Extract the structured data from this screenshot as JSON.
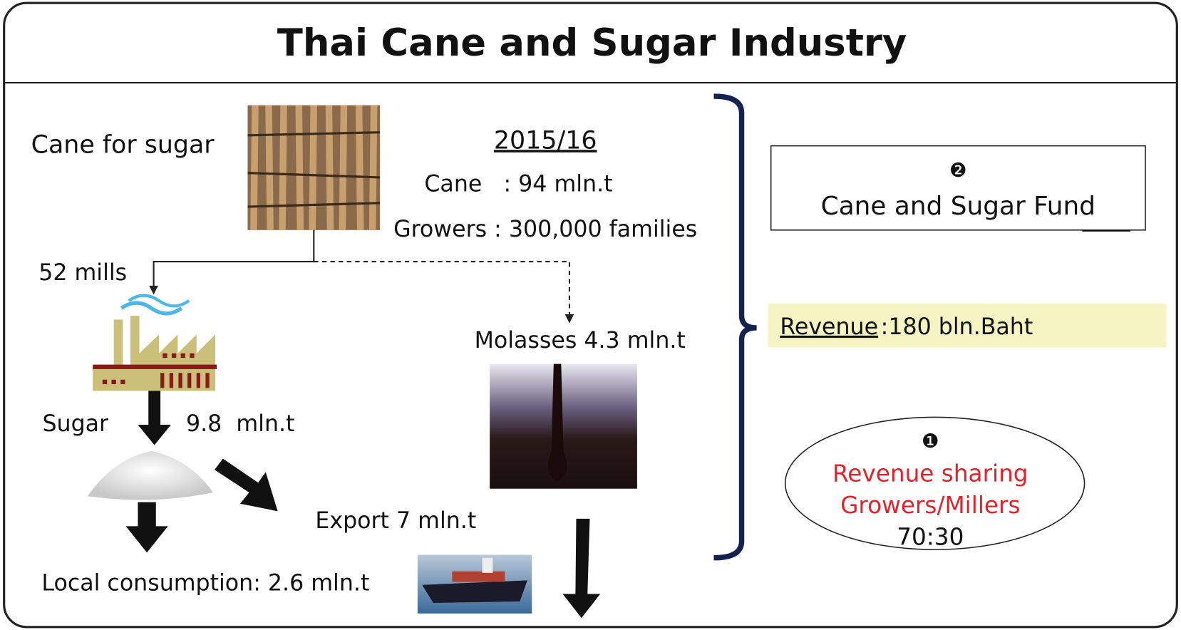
{
  "title": "Thai Cane and Sugar Industry",
  "cane_label": "Cane for sugar",
  "season": "2015/16",
  "stats": [
    "Cane   : 94 mln.t",
    "Growers : 300,000 families"
  ],
  "mills": "52 mills",
  "sugar": {
    "label": "Sugar",
    "amount": "9.8  mln.t"
  },
  "molasses": "Molasses 4.3 mln.t",
  "export": "Export 7 mln.t",
  "local": "Local consumption: 2.6 mln.t",
  "fund": {
    "marker": "❷",
    "label": "Cane and Sugar Fund"
  },
  "revenue": {
    "label": "Revenue",
    "value": ":180 bln.Baht"
  },
  "sharing": {
    "marker": "❶",
    "lines": [
      "Revenue sharing",
      "Growers/Millers",
      "70:30"
    ]
  }
}
